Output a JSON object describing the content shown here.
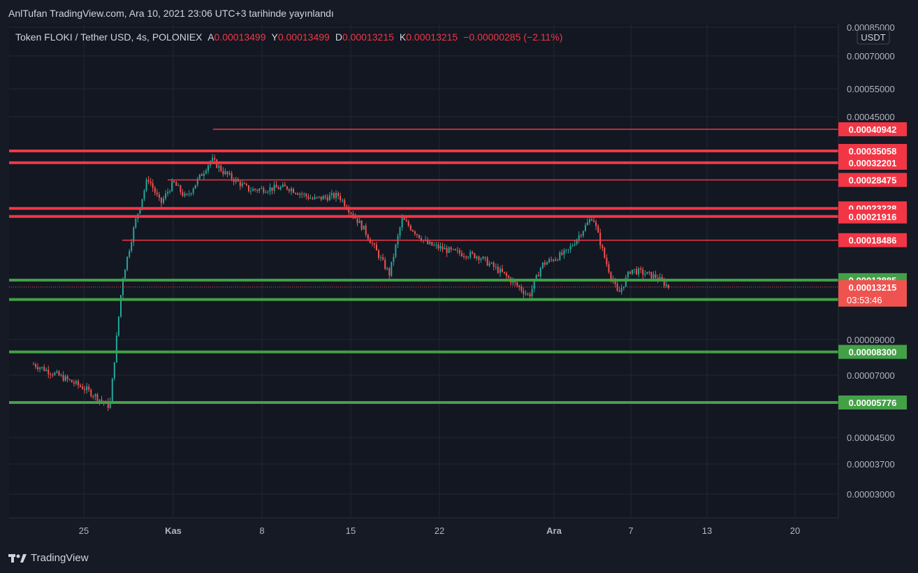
{
  "published": "AnlTufan TradingView.com, Ara 10, 2021 23:06 UTC+3 tarihinde yayınlandı",
  "symbol_line": "Token FLOKI / Tether USD, 4s, POLONIEX",
  "ohlc": {
    "open_label": "A",
    "open": "0.00013499",
    "high_label": "Y",
    "high": "0.00013499",
    "low_label": "D",
    "low": "0.00013215",
    "close_label": "K",
    "close": "0.00013215",
    "change": "−0.00000285 (−2.11%)"
  },
  "currency": "USDT",
  "brand": "TradingView",
  "countdown": "03:53:46",
  "colors": {
    "background": "#161a25",
    "up": "#26a69a",
    "down": "#ef5350",
    "resistance": "#f23645",
    "support": "#43a047",
    "grid": "#232734",
    "text": "#d1d4dc"
  },
  "chart_data": {
    "type": "candlestick",
    "title": "Token FLOKI / Tether USD, 4s, POLONIEX",
    "x_axis_ticks": [
      "25",
      "Kas",
      "8",
      "15",
      "22",
      "Ara",
      "7",
      "13",
      "20"
    ],
    "y_axis_ticks": [
      "0.00085000",
      "0.00070000",
      "0.00055000",
      "0.00045000",
      "0.00009000",
      "0.00007000",
      "0.00004500",
      "0.00003700",
      "0.00003000"
    ],
    "y_scale": "log",
    "resistance_levels": [
      0.00040942,
      0.00035058,
      0.00032201,
      0.00028475,
      0.00023228,
      0.00021916,
      0.00018486
    ],
    "support_levels": [
      0.00013885,
      0.00012087,
      8.3e-05,
      5.776e-05
    ],
    "last_price": "0.00013215",
    "price_path": [
      {
        "x": "2021-10-21",
        "y": 7.6e-05
      },
      {
        "x": "2021-10-23",
        "y": 7e-05
      },
      {
        "x": "2021-10-25",
        "y": 6.4e-05
      },
      {
        "x": "2021-10-26",
        "y": 6e-05
      },
      {
        "x": "2021-10-27",
        "y": 5.6e-05
      },
      {
        "x": "2021-10-28",
        "y": 0.00014
      },
      {
        "x": "2021-10-29",
        "y": 0.00021
      },
      {
        "x": "2021-10-30",
        "y": 0.00029
      },
      {
        "x": "2021-10-31",
        "y": 0.00024
      },
      {
        "x": "2021-11-01",
        "y": 0.00028
      },
      {
        "x": "2021-11-02",
        "y": 0.00025
      },
      {
        "x": "2021-11-04",
        "y": 0.00033
      },
      {
        "x": "2021-11-05",
        "y": 0.0003
      },
      {
        "x": "2021-11-07",
        "y": 0.000265
      },
      {
        "x": "2021-11-10",
        "y": 0.00027
      },
      {
        "x": "2021-11-12",
        "y": 0.000248
      },
      {
        "x": "2021-11-14",
        "y": 0.000255
      },
      {
        "x": "2021-11-16",
        "y": 0.0002
      },
      {
        "x": "2021-11-18",
        "y": 0.000145
      },
      {
        "x": "2021-11-19",
        "y": 0.000215
      },
      {
        "x": "2021-11-21",
        "y": 0.00018
      },
      {
        "x": "2021-11-23",
        "y": 0.00017
      },
      {
        "x": "2021-11-25",
        "y": 0.000165
      },
      {
        "x": "2021-11-27",
        "y": 0.000145
      },
      {
        "x": "2021-11-29",
        "y": 0.000124
      },
      {
        "x": "2021-11-30",
        "y": 0.000155
      },
      {
        "x": "2021-12-02",
        "y": 0.00017
      },
      {
        "x": "2021-12-04",
        "y": 0.00022
      },
      {
        "x": "2021-12-05",
        "y": 0.00016
      },
      {
        "x": "2021-12-06",
        "y": 0.000125
      },
      {
        "x": "2021-12-07",
        "y": 0.00015
      },
      {
        "x": "2021-12-09",
        "y": 0.000142
      },
      {
        "x": "2021-12-10",
        "y": 0.0001321
      }
    ]
  }
}
